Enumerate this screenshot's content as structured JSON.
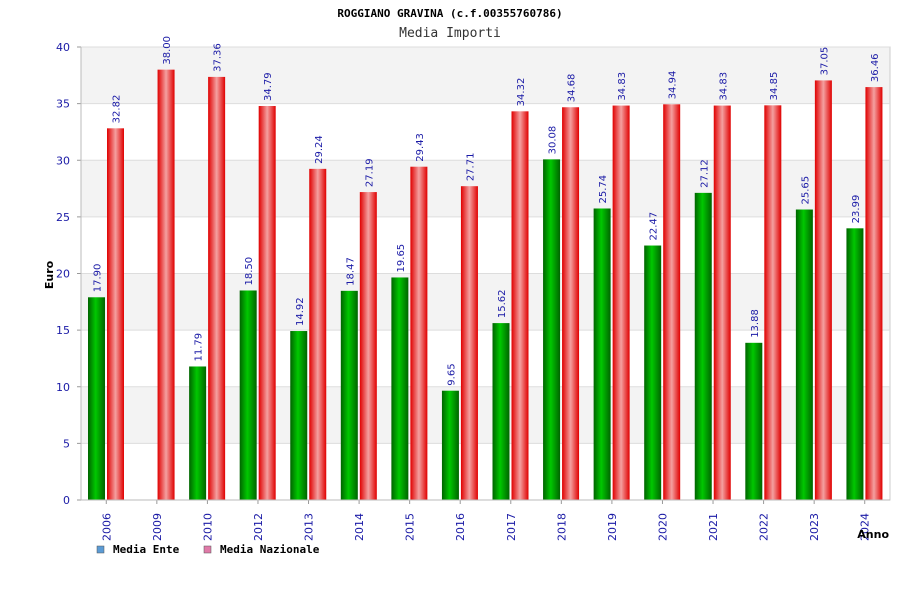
{
  "chart_data": {
    "type": "bar",
    "title": "ROGGIANO GRAVINA (c.f.00355760786)",
    "subtitle": "Media Importi",
    "xlabel": "Anno",
    "ylabel": "Euro",
    "ylim": [
      0,
      40
    ],
    "yticks": [
      "0",
      "5",
      "10",
      "15",
      "20",
      "25",
      "30",
      "35",
      "40"
    ],
    "grid": true,
    "legend_position": "bottom-left",
    "categories": [
      "2006",
      "2009",
      "2010",
      "2012",
      "2013",
      "2014",
      "2015",
      "2016",
      "2017",
      "2018",
      "2019",
      "2020",
      "2021",
      "2022",
      "2023",
      "2024"
    ],
    "series": [
      {
        "name": "Media Ente",
        "color": "#00a000",
        "values": [
          17.9,
          null,
          11.79,
          18.5,
          14.92,
          18.47,
          19.65,
          9.65,
          15.62,
          30.08,
          25.74,
          22.47,
          27.12,
          13.88,
          25.65,
          23.99
        ],
        "labels": [
          "17.90",
          "",
          "11.79",
          "18.50",
          "14.92",
          "18.47",
          "19.65",
          "9.65",
          "15.62",
          "30.08",
          "25.74",
          "22.47",
          "27.12",
          "13.88",
          "25.65",
          "23.99"
        ]
      },
      {
        "name": "Media Nazionale",
        "color": "#e00000",
        "values": [
          32.82,
          38.0,
          37.36,
          34.79,
          29.24,
          27.19,
          29.43,
          27.71,
          34.32,
          34.68,
          34.83,
          34.94,
          34.83,
          34.85,
          37.05,
          36.46
        ],
        "labels": [
          "32.82",
          "38.00",
          "37.36",
          "34.79",
          "29.24",
          "27.19",
          "29.43",
          "27.71",
          "34.32",
          "34.68",
          "34.83",
          "34.94",
          "34.83",
          "34.85",
          "37.05",
          "36.46"
        ]
      }
    ]
  },
  "legend": {
    "items": [
      {
        "label": "Media Ente",
        "color": "#5b9bd5"
      },
      {
        "label": "Media Nazionale",
        "color": "#e07aa8"
      }
    ]
  }
}
